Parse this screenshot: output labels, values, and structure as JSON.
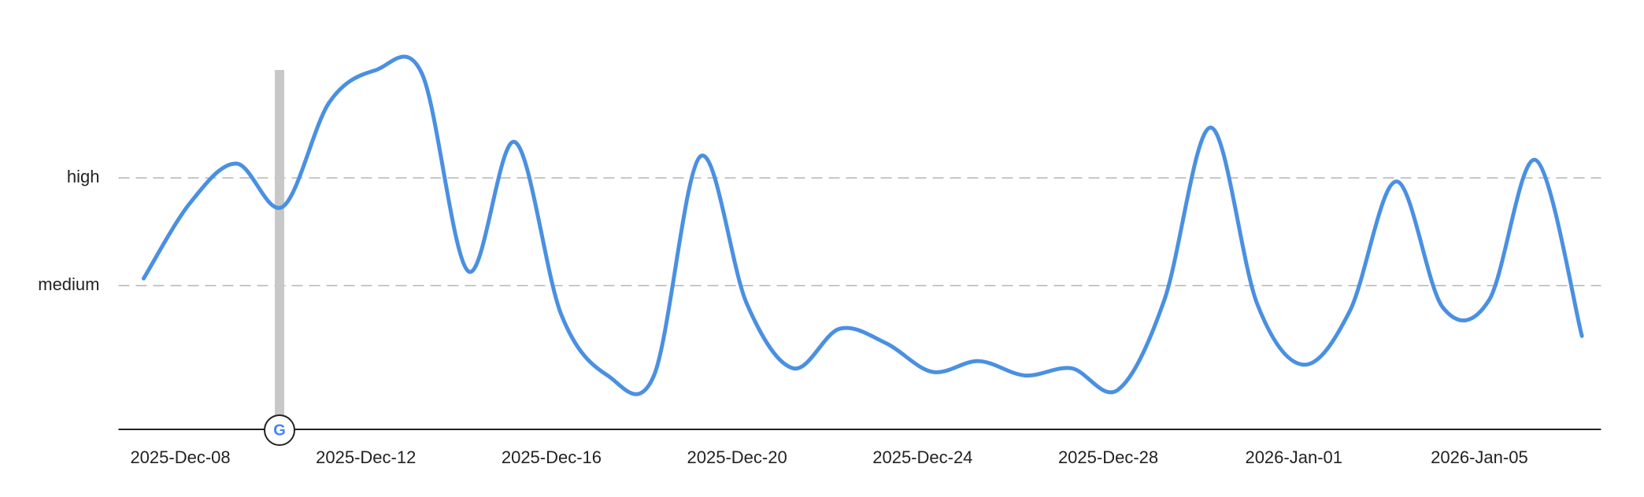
{
  "chart_data": {
    "type": "line",
    "categories": [
      "2025-Dec-08",
      null,
      null,
      null,
      "2025-Dec-12",
      null,
      null,
      null,
      "2025-Dec-16",
      null,
      null,
      null,
      "2025-Dec-20",
      null,
      null,
      null,
      "2025-Dec-24",
      null,
      null,
      null,
      "2025-Dec-28",
      null,
      null,
      null,
      "2026-Jan-01",
      null,
      null,
      null,
      "2026-Jan-05",
      null,
      null,
      null
    ],
    "series": [
      {
        "color": "#4a90e2",
        "values": [
          42,
          63,
          74,
          62,
          91,
          100,
          99,
          44,
          80,
          32,
          15,
          15,
          76,
          35,
          17,
          28,
          24,
          16,
          19,
          15,
          17,
          11,
          36,
          84,
          35,
          18,
          33,
          69,
          34,
          36,
          75,
          26
        ]
      }
    ],
    "ylim": [
      0,
      100
    ],
    "yticks": [
      {
        "value": 40,
        "label": "medium"
      },
      {
        "value": 70,
        "label": "high"
      }
    ],
    "grid": true
  }
}
